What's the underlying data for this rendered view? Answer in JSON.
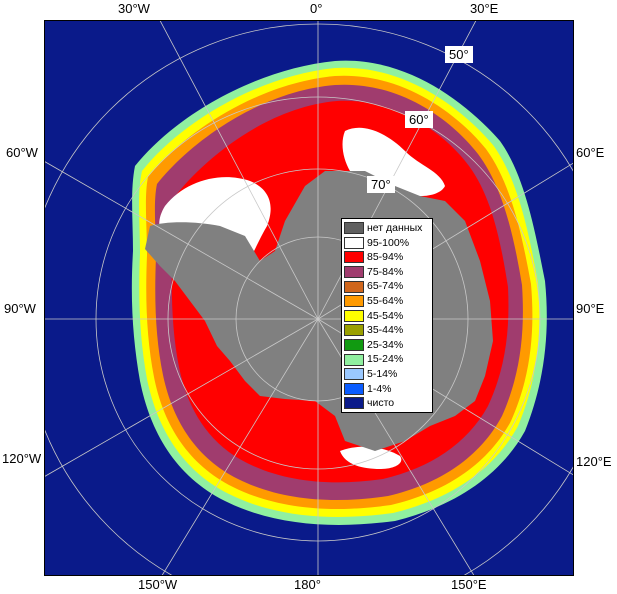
{
  "map": {
    "meridian_labels": {
      "top": [
        "30°W",
        "0°",
        "30°E"
      ],
      "left": [
        "60°W",
        "90°W",
        "120°W"
      ],
      "right": [
        "60°E",
        "90°E",
        "120°E"
      ],
      "bottom": [
        "150°W",
        "180°",
        "150°E"
      ]
    },
    "parallel_labels": [
      "50°",
      "60°",
      "70°"
    ]
  },
  "legend": {
    "items": [
      {
        "label": "нет данных",
        "color": "#606060"
      },
      {
        "label": "95-100%",
        "color": "#ffffff"
      },
      {
        "label": "85-94%",
        "color": "#ff0000"
      },
      {
        "label": "75-84%",
        "color": "#a03c6e"
      },
      {
        "label": "65-74%",
        "color": "#d0661c"
      },
      {
        "label": "55-64%",
        "color": "#ff9a00"
      },
      {
        "label": "45-54%",
        "color": "#ffff00"
      },
      {
        "label": "35-44%",
        "color": "#9aa000"
      },
      {
        "label": "25-34%",
        "color": "#119a11"
      },
      {
        "label": "15-24%",
        "color": "#90f0a0"
      },
      {
        "label": "5-14%",
        "color": "#9ac8ff"
      },
      {
        "label": "1-4%",
        "color": "#0a5cff"
      },
      {
        "label": "чисто",
        "color": "#0a1a8a"
      }
    ]
  },
  "colors": {
    "ocean": "#0a1a8a",
    "land": "#808080",
    "grid": "#c8c8c8"
  }
}
